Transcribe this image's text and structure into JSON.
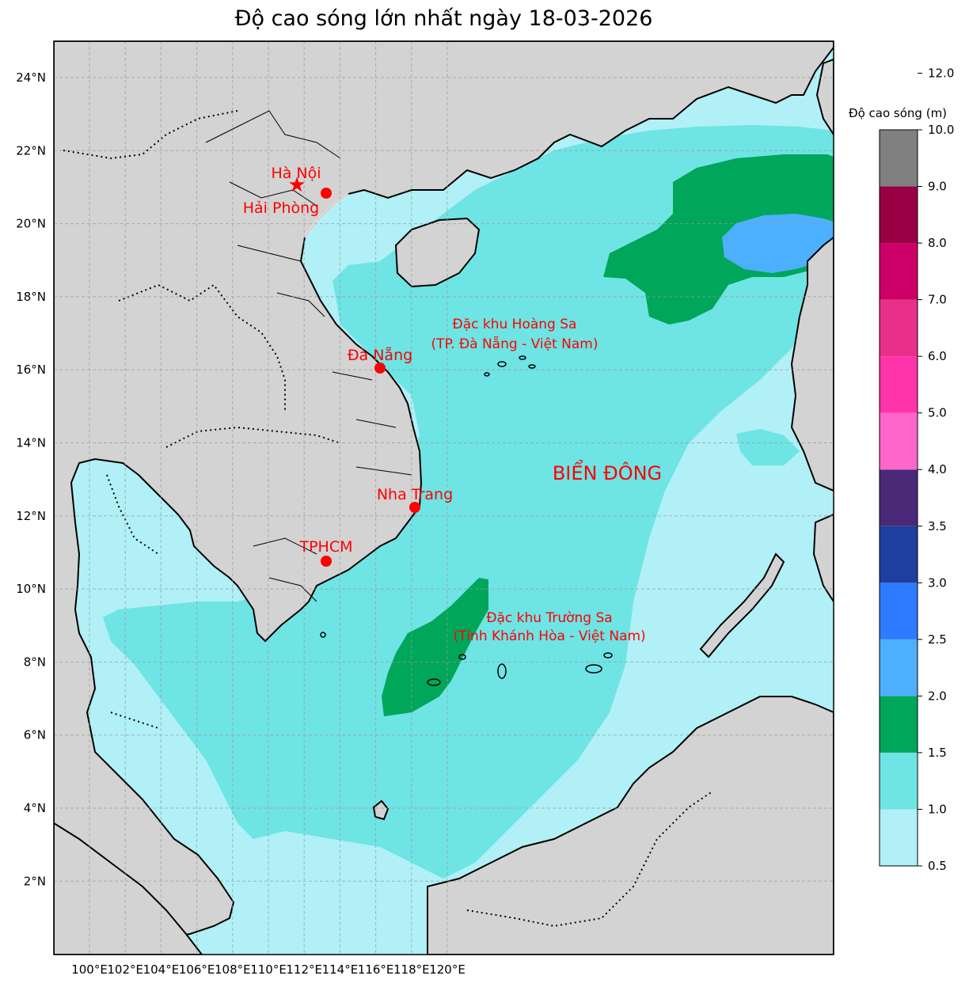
{
  "title": "Độ cao sóng lớn nhất ngày 18-03-2026",
  "axes": {
    "lon_labels": [
      "100°E",
      "102°E",
      "104°E",
      "106°E",
      "108°E",
      "110°E",
      "112°E",
      "114°E",
      "116°E",
      "118°E",
      "120°E"
    ],
    "lat_labels": [
      "24°N",
      "22°N",
      "20°N",
      "18°N",
      "16°N",
      "14°N",
      "12°N",
      "10°N",
      "8°N",
      "6°N",
      "4°N",
      "2°N"
    ]
  },
  "cities": [
    {
      "name": "Hà Nội",
      "marker": "star"
    },
    {
      "name": "Hải Phòng",
      "marker": "dot"
    },
    {
      "name": "Đà Nẵng",
      "marker": "dot"
    },
    {
      "name": "Nha Trang",
      "marker": "dot"
    },
    {
      "name": "TPHCM",
      "marker": "dot"
    }
  ],
  "regions": {
    "hoang_sa_line1": "Đặc khu Hoàng Sa",
    "hoang_sa_line2": "(TP. Đà Nẵng - Việt Nam)",
    "truong_sa_line1": "Đặc khu Trường Sa",
    "truong_sa_line2": "(Tỉnh Khánh Hòa - Việt Nam)",
    "sea_name": "BIỂN ĐÔNG"
  },
  "colorbar": {
    "title": "Độ cao sóng (m)",
    "ticks": [
      "0.5",
      "1.0",
      "1.5",
      "2.0",
      "2.5",
      "3.0",
      "3.5",
      "4.0",
      "5.0",
      "6.0",
      "7.0",
      "8.0",
      "9.0",
      "10.0",
      "12.0"
    ],
    "colors": [
      "#b0f0f6",
      "#6ee4e4",
      "#00a65a",
      "#4db0ff",
      "#2e7bff",
      "#1e3fa0",
      "#4a2a78",
      "#ff66cc",
      "#ff33aa",
      "#e8308a",
      "#cc0066",
      "#990044",
      "#808080"
    ]
  },
  "colors": {
    "land": "#d3d3d3",
    "sea_low": "#b0f0f6",
    "sea_mid": "#6ee4e4",
    "sea_high": "#00a65a",
    "sea_peak": "#4db0ff",
    "marker": "#ff0000"
  }
}
